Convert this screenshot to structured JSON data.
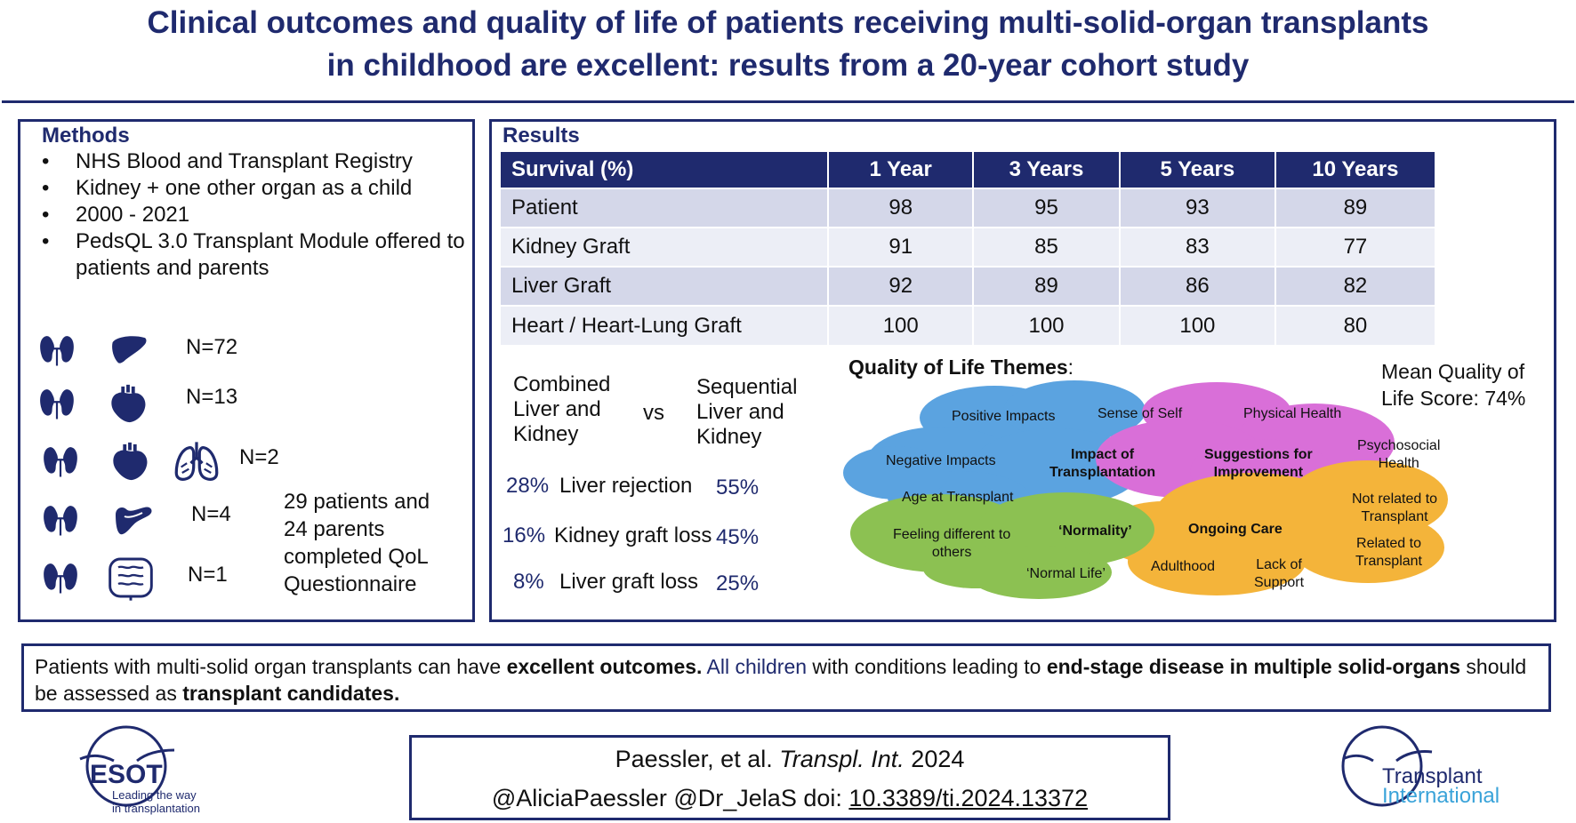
{
  "title_lines": [
    "Clinical outcomes and quality of life of patients receiving multi-solid-organ transplants",
    "in childhood are excellent: results from a 20-year cohort study"
  ],
  "methods": {
    "heading": "Methods",
    "bullets": [
      "NHS Blood and Transplant Registry",
      "Kidney + one other organ as a child",
      "2000 - 2021",
      "PedsQL 3.0 Transplant Module offered to patients and parents"
    ],
    "groups": [
      {
        "organs": [
          "kidney-icon",
          "liver-icon"
        ],
        "n": "N=72"
      },
      {
        "organs": [
          "kidney-icon",
          "heart-icon"
        ],
        "n": "N=13"
      },
      {
        "organs": [
          "kidney-icon",
          "heart-icon",
          "lungs-icon"
        ],
        "n": "N=2"
      },
      {
        "organs": [
          "kidney-icon",
          "pancreas-icon"
        ],
        "n": "N=4"
      },
      {
        "organs": [
          "kidney-icon",
          "intestine-icon"
        ],
        "n": "N=1"
      }
    ],
    "completed_lines": [
      "29 patients and",
      "24 parents",
      "completed QoL",
      "Questionnaire"
    ]
  },
  "results": {
    "heading": "Results",
    "table": {
      "headers": [
        "Survival (%)",
        "1 Year",
        "3 Years",
        "5 Years",
        "10 Years"
      ],
      "rows": [
        [
          "Patient",
          "98",
          "95",
          "93",
          "89"
        ],
        [
          "Kidney Graft",
          "91",
          "85",
          "83",
          "77"
        ],
        [
          "Liver Graft",
          "92",
          "89",
          "86",
          "82"
        ],
        [
          "Heart / Heart-Lung Graft",
          "100",
          "100",
          "100",
          "80"
        ]
      ]
    },
    "comparison": {
      "left_lines": [
        "Combined",
        "Liver and",
        "Kidney"
      ],
      "vs": "vs",
      "right_lines": [
        "Sequential",
        "Liver and",
        "Kidney"
      ],
      "rows": [
        {
          "left": "28%",
          "label": "Liver rejection",
          "right": "55%"
        },
        {
          "left": "16%",
          "label": "Kidney graft loss",
          "right": "45%"
        },
        {
          "left": "8%",
          "label": "Liver graft loss",
          "right": "25%"
        }
      ]
    },
    "qol": {
      "title": "Quality of Life Themes",
      "title_suffix": ":",
      "mean_lines": [
        "Mean Quality of",
        "Life Score: 74%"
      ],
      "colors": {
        "blue": "#5ba3e0",
        "pink": "#d96fd8",
        "green": "#8cc152",
        "orange": "#f4b43a"
      },
      "themes": {
        "positive_impacts": "Positive Impacts",
        "sense_of_self": "Sense of Self",
        "negative_impacts": "Negative Impacts",
        "impact_line1": "Impact of",
        "impact_line2": "Transplantation",
        "age_at_transplant": "Age at Transplant",
        "physical_health": "Physical Health",
        "psychosocial_line1": "Psychosocial",
        "psychosocial_line2": "Health",
        "suggestions_line1": "Suggestions for",
        "suggestions_line2": "Improvement",
        "feeling_line1": "Feeling different to",
        "feeling_line2": "others",
        "normality": "‘Normality’",
        "normal_life": "‘Normal Life’",
        "ongoing_care": "Ongoing Care",
        "adulthood": "Adulthood",
        "lack_line1": "Lack of",
        "lack_line2": "Support",
        "not_related_line1": "Not related to",
        "not_related_line2": "Transplant",
        "related_line1": "Related to",
        "related_line2": "Transplant"
      }
    }
  },
  "conclusion": {
    "p1": "Patients with  multi-solid organ transplants  can have ",
    "b1": "excellent outcomes.",
    "blue1": " All children",
    "p2": " with  conditions leading to ",
    "b2": "end-stage disease in multiple solid-organs",
    "p3": " should be assessed as ",
    "b3": "transplant candidates."
  },
  "citation": {
    "authors": "Paessler, et al. ",
    "journal": "Transpl. Int.",
    "year": " 2024",
    "handles": "@AliciaPaessler @Dr_JelaS  doi: ",
    "doi": "10.3389/ti.2024.13372"
  },
  "logos": {
    "esot": {
      "name": "ESOT",
      "tagline_lines": [
        "Leading the way",
        "in transplantation"
      ]
    },
    "ti": {
      "line1": "Transplant",
      "line2": "International"
    }
  },
  "colors": {
    "navy": "#1f2a6e",
    "organ": "#1f2a6e",
    "ti_blue": "#3aa3d9"
  }
}
